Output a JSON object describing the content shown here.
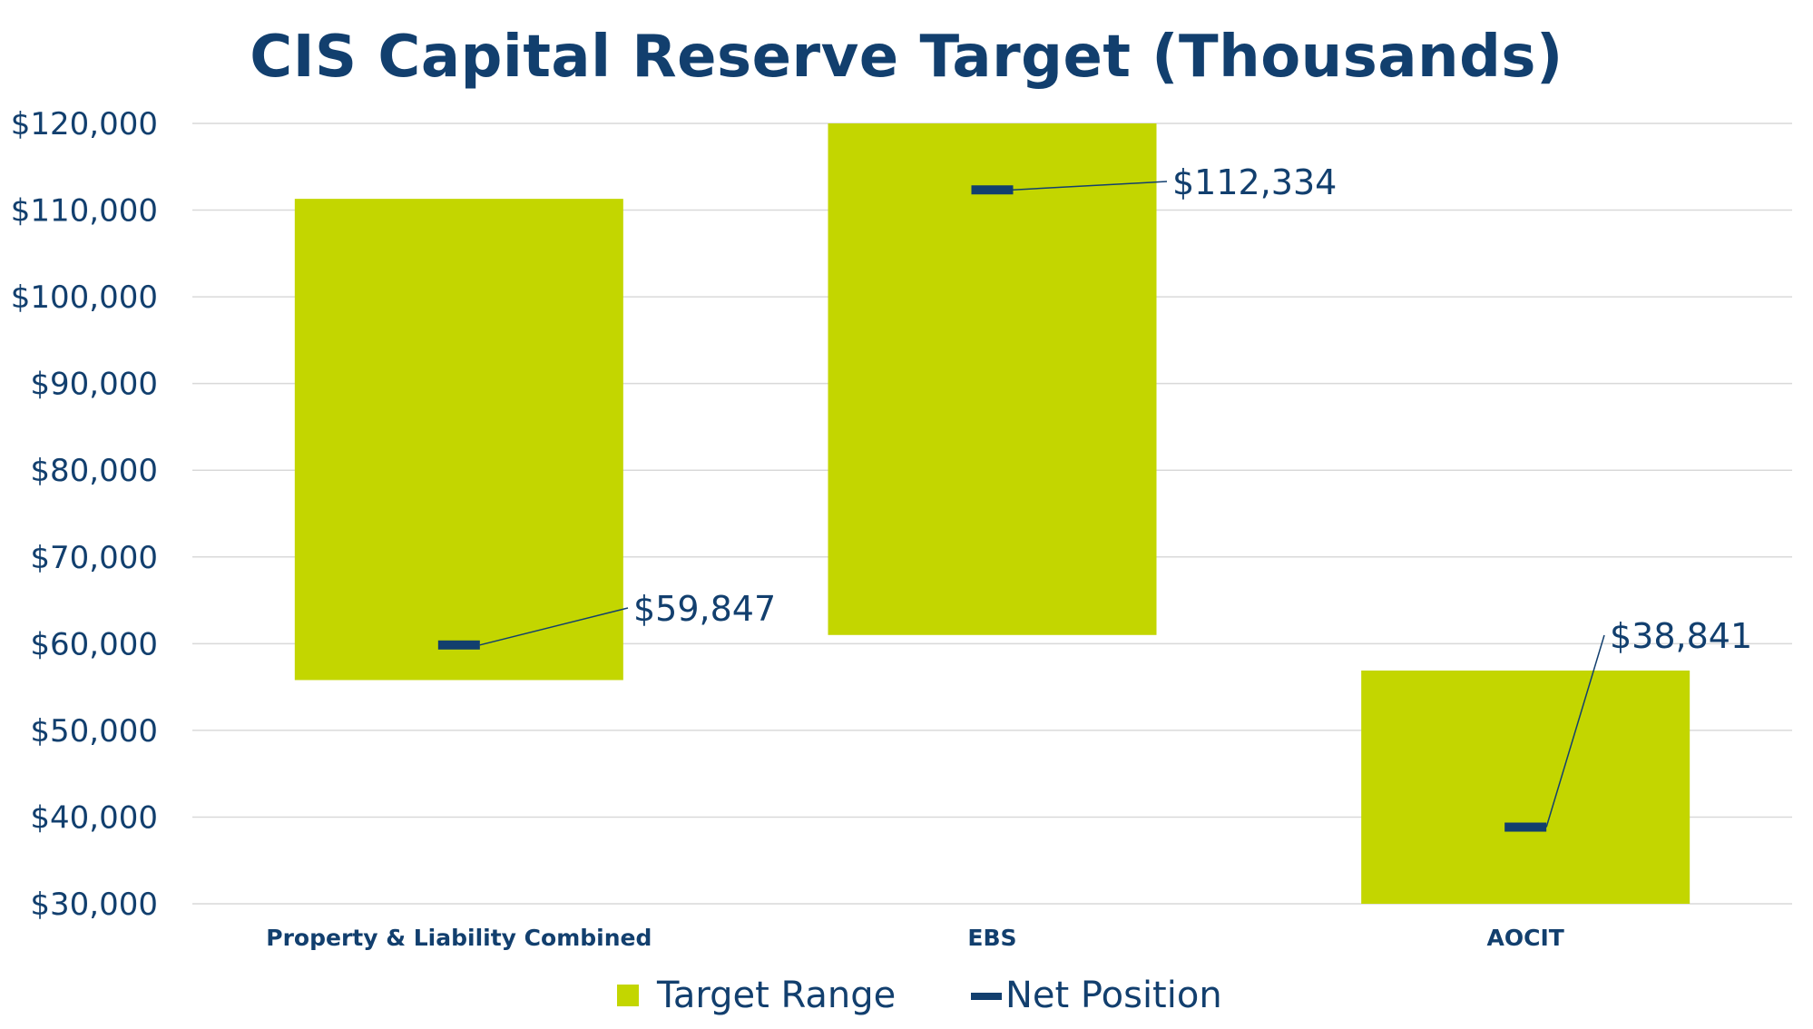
{
  "chart_data": {
    "type": "bar",
    "title": "CIS Capital Reserve Target (Thousands)",
    "xlabel": "",
    "ylabel": "",
    "ylim": [
      30000,
      120000
    ],
    "ytick_step": 10000,
    "yticks": [
      "$30,000",
      "$40,000",
      "$50,000",
      "$60,000",
      "$70,000",
      "$80,000",
      "$90,000",
      "$100,000",
      "$110,000",
      "$120,000"
    ],
    "grid": true,
    "legend_position": "bottom",
    "categories": [
      "Property & Liability Combined",
      "EBS",
      "AOCIT"
    ],
    "series": [
      {
        "name": "Target Range",
        "kind": "floating-bar",
        "color": "#C3D600",
        "low": [
          55800,
          61000,
          30000
        ],
        "high": [
          111300,
          120000,
          56900
        ]
      },
      {
        "name": "Net Position",
        "kind": "marker",
        "color": "#123F6E",
        "values": [
          59847,
          112334,
          38841
        ],
        "labels": [
          "$59,847",
          "$112,334",
          "$38,841"
        ]
      }
    ]
  }
}
